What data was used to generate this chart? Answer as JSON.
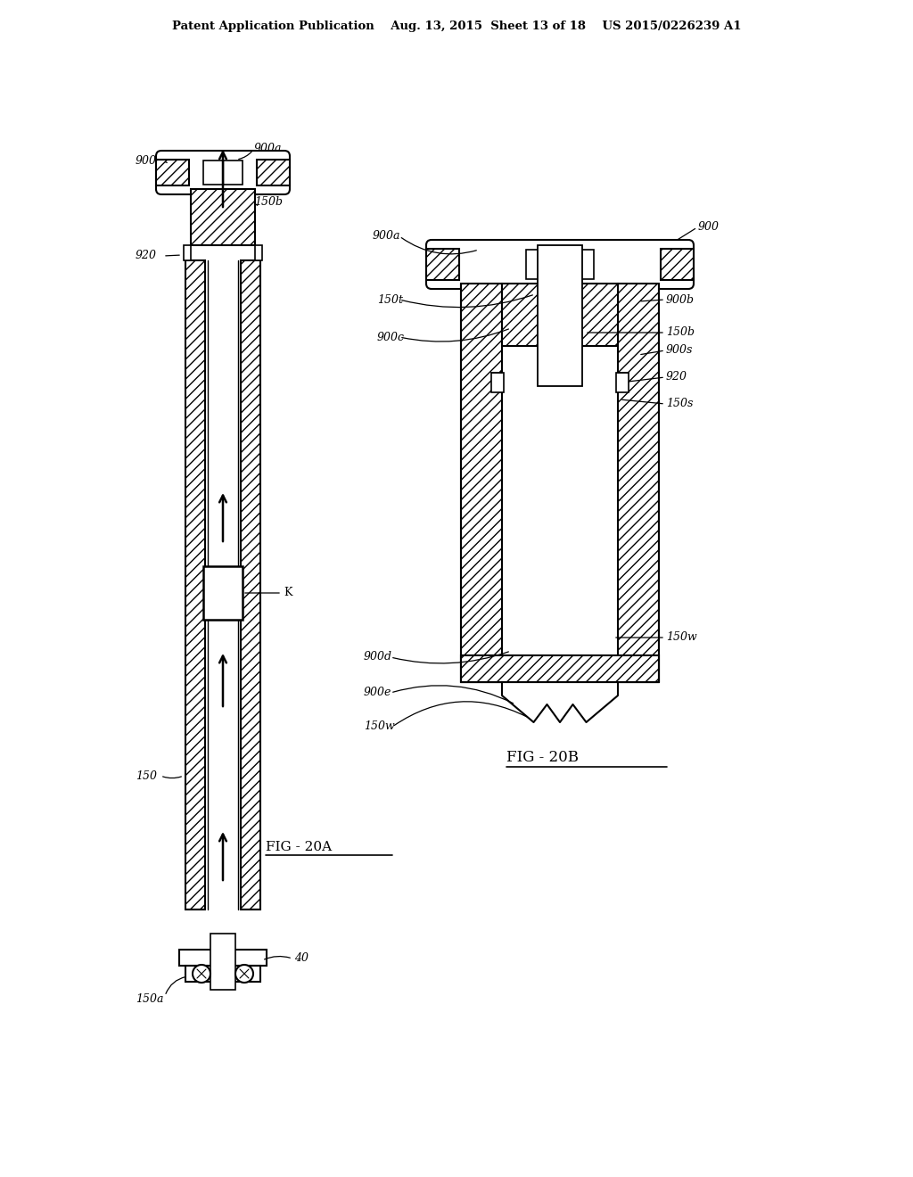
{
  "bg_color": "#ffffff",
  "header": "Patent Application Publication    Aug. 13, 2015  Sheet 13 of 18    US 2015/0226239 A1",
  "fig20a": "FIG - 20A",
  "fig20b": "FIG - 20B"
}
